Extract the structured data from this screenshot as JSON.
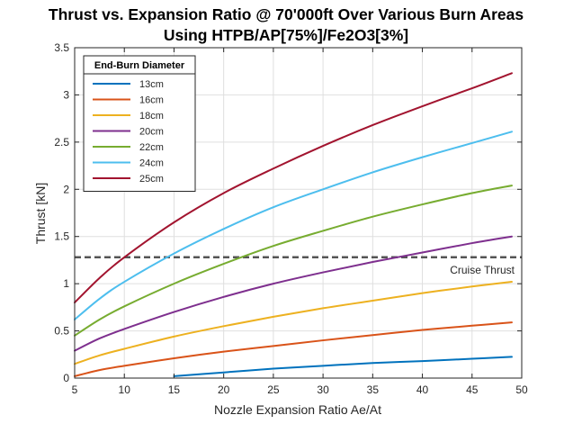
{
  "chart_data": {
    "type": "line",
    "title": [
      "Thrust vs. Expansion Ratio @ 70'000ft Over Various Burn Areas",
      "Using HTPB/AP[75%]/Fe2O3[3%]"
    ],
    "xlabel": "Nozzle Expansion Ratio Ae/At",
    "ylabel": "Thrust [kN]",
    "xlim": [
      5,
      50
    ],
    "ylim": [
      0,
      3.5
    ],
    "xticks": [
      5,
      10,
      15,
      20,
      25,
      30,
      35,
      40,
      45,
      50
    ],
    "xtick_labels": [
      "5",
      "10",
      "15",
      "20",
      "25",
      "30",
      "35",
      "40",
      "45",
      "50"
    ],
    "yticks": [
      0,
      0.5,
      1,
      1.5,
      2,
      2.5,
      3,
      3.5
    ],
    "ytick_labels": [
      "0",
      "0.5",
      "1",
      "1.5",
      "2",
      "2.5",
      "3",
      "3.5"
    ],
    "grid": true,
    "legend": {
      "title": "End-Burn Diameter",
      "placement": "top-left"
    },
    "series": [
      {
        "name": "13cm",
        "color": "#0072BD",
        "x": [
          15,
          20,
          25,
          30,
          35,
          40,
          45,
          49
        ],
        "y": [
          0.02,
          0.06,
          0.1,
          0.13,
          0.16,
          0.18,
          0.205,
          0.225
        ]
      },
      {
        "name": "16cm",
        "color": "#D95319",
        "x": [
          5,
          7.5,
          10,
          15,
          20,
          25,
          30,
          35,
          40,
          45,
          49
        ],
        "y": [
          0.02,
          0.085,
          0.13,
          0.21,
          0.28,
          0.34,
          0.4,
          0.455,
          0.51,
          0.555,
          0.59
        ]
      },
      {
        "name": "18cm",
        "color": "#EDB120",
        "x": [
          5,
          7.5,
          10,
          15,
          20,
          25,
          30,
          35,
          40,
          45,
          49
        ],
        "y": [
          0.15,
          0.24,
          0.31,
          0.44,
          0.55,
          0.65,
          0.74,
          0.82,
          0.9,
          0.97,
          1.02
        ]
      },
      {
        "name": "20cm",
        "color": "#7E2F8E",
        "x": [
          5,
          7.5,
          10,
          15,
          20,
          25,
          30,
          35,
          40,
          45,
          49
        ],
        "y": [
          0.29,
          0.42,
          0.52,
          0.7,
          0.86,
          1.0,
          1.12,
          1.23,
          1.33,
          1.43,
          1.5
        ]
      },
      {
        "name": "22cm",
        "color": "#77AC30",
        "x": [
          5,
          7.5,
          10,
          15,
          20,
          25,
          30,
          35,
          40,
          45,
          49
        ],
        "y": [
          0.45,
          0.62,
          0.76,
          1.0,
          1.21,
          1.4,
          1.56,
          1.71,
          1.84,
          1.96,
          2.04
        ]
      },
      {
        "name": "24cm",
        "color": "#4DBEEE",
        "x": [
          5,
          7.5,
          10,
          15,
          20,
          25,
          30,
          35,
          40,
          45,
          49
        ],
        "y": [
          0.62,
          0.84,
          1.02,
          1.32,
          1.58,
          1.81,
          2.0,
          2.18,
          2.34,
          2.49,
          2.61
        ]
      },
      {
        "name": "25cm",
        "color": "#A2142F",
        "x": [
          5,
          7.5,
          10,
          15,
          20,
          25,
          30,
          35,
          40,
          45,
          49
        ],
        "y": [
          0.8,
          1.06,
          1.28,
          1.65,
          1.96,
          2.22,
          2.46,
          2.68,
          2.88,
          3.07,
          3.23
        ]
      }
    ],
    "reference_line": {
      "label": "Cruise Thrust",
      "y": 1.28,
      "color": "#555555",
      "style": "dashed"
    }
  }
}
